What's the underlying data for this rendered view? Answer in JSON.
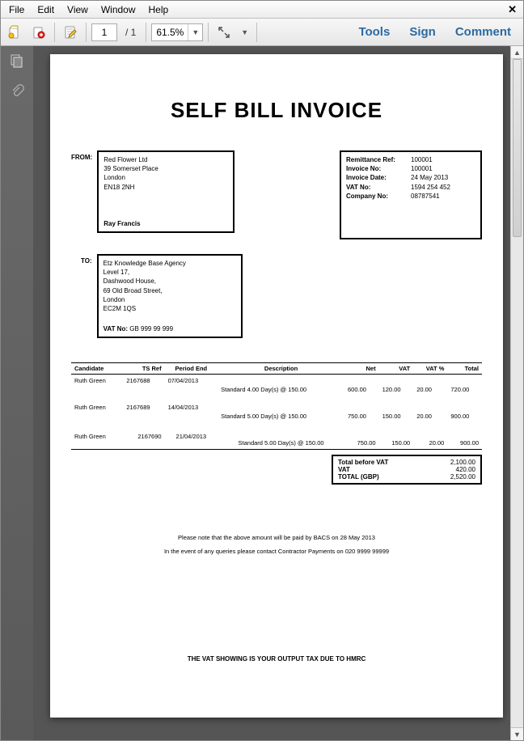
{
  "menu": {
    "file": "File",
    "edit": "Edit",
    "view": "View",
    "window": "Window",
    "help": "Help"
  },
  "toolbar": {
    "page_current": "1",
    "page_total": "/  1",
    "zoom": "61.5%",
    "tools": "Tools",
    "sign": "Sign",
    "comment": "Comment"
  },
  "doc": {
    "title": "SELF BILL INVOICE",
    "from_label": "FROM:",
    "from": {
      "company": "Red Flower Ltd",
      "street": "39 Somerset Place",
      "city": "London",
      "postcode": "EN18 2NH",
      "contact": "Ray Francis"
    },
    "ref": {
      "remit_k": "Remittance Ref:",
      "remit_v": "100001",
      "inv_k": "Invoice No:",
      "inv_v": "100001",
      "date_k": "Invoice Date:",
      "date_v": "24 May 2013",
      "vat_k": "VAT No:",
      "vat_v": "1594 254 452",
      "comp_k": "Company No:",
      "comp_v": "08787541"
    },
    "to_label": "TO:",
    "to": {
      "name": "Etz Knowledge Base Agency",
      "l1": "Level 17,",
      "l2": "Dashwood House,",
      "l3": "69 Old Broad Street,",
      "l4": "London",
      "l5": "EC2M 1QS",
      "vat_k": "VAT No:",
      "vat_v": "GB 999 99 999"
    },
    "thead": {
      "cand": "Candidate",
      "tsref": "TS Ref",
      "period": "Period End",
      "desc": "Description",
      "net": "Net",
      "vat": "VAT",
      "vatp": "VAT %",
      "total": "Total"
    },
    "rows": [
      {
        "cand": "Ruth Green",
        "tsref": "2167688",
        "period": "07/04/2013",
        "desc": "Standard 4.00 Day(s) @ 150.00",
        "net": "600.00",
        "vat": "120.00",
        "vatp": "20.00",
        "total": "720.00"
      },
      {
        "cand": "Ruth Green",
        "tsref": "2167689",
        "period": "14/04/2013",
        "desc": "Standard 5.00 Day(s) @ 150.00",
        "net": "750.00",
        "vat": "150.00",
        "vatp": "20.00",
        "total": "900.00"
      },
      {
        "cand": "Ruth Green",
        "tsref": "2167690",
        "period": "21/04/2013",
        "desc": "Standard 5.00 Day(s) @ 150.00",
        "net": "750.00",
        "vat": "150.00",
        "vatp": "20.00",
        "total": "900.00"
      }
    ],
    "totals": {
      "before_k": "Total before VAT",
      "before_v": "2,100.00",
      "vat_k": "VAT",
      "vat_v": "420.00",
      "grand_k": "TOTAL (GBP)",
      "grand_v": "2,520.00"
    },
    "note1": "Please note that the above amount will be paid by BACS on 28 May 2013",
    "note2": "In the event of any queries please contact Contractor Payments on 020 9999 99999",
    "footer": "THE VAT SHOWING IS YOUR OUTPUT TAX DUE TO HMRC"
  }
}
